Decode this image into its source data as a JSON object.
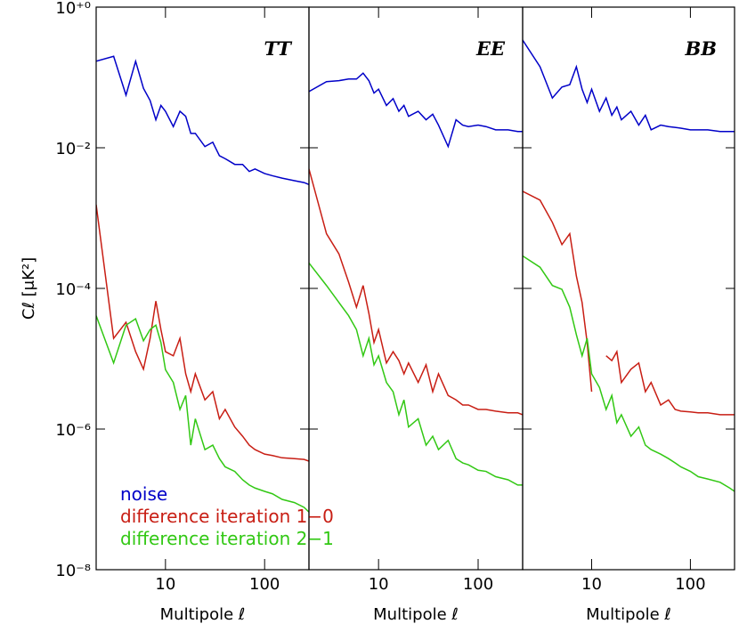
{
  "chart_data": {
    "type": "line",
    "ylabel": "Cℓ [μK²]",
    "xlabel": "Multipole ℓ",
    "log_x": true,
    "log_y": true,
    "xlim": [
      2,
      280
    ],
    "xticks": [
      10,
      100
    ],
    "ylim": [
      1e-08,
      1
    ],
    "yticks": [
      {
        "value": 1e-08,
        "label": "10⁻⁸"
      },
      {
        "value": 1e-06,
        "label": "10⁻⁶"
      },
      {
        "value": 0.0001,
        "label": "10⁻⁴"
      },
      {
        "value": 0.01,
        "label": "10⁻²"
      },
      {
        "value": 1,
        "label": "10⁺⁰"
      }
    ],
    "x": [
      2,
      3,
      4,
      5,
      6,
      7,
      8,
      9,
      10,
      12,
      14,
      16,
      18,
      20,
      25,
      30,
      35,
      40,
      50,
      60,
      70,
      80,
      100,
      120,
      150,
      200,
      250,
      280
    ],
    "series": [
      {
        "name": "noise",
        "color": "#0000c8"
      },
      {
        "name": "difference iteration 1−0",
        "color": "#c81e14"
      },
      {
        "name": "difference iteration 2−1",
        "color": "#32c814"
      }
    ],
    "panels": [
      {
        "title": "TT",
        "series": [
          {
            "values": [
              0.17,
              0.2,
              0.056,
              0.17,
              0.07,
              0.047,
              0.025,
              0.04,
              0.033,
              0.02,
              0.033,
              0.028,
              0.016,
              0.016,
              0.0104,
              0.012,
              0.0077,
              0.007,
              0.0058,
              0.0058,
              0.0046,
              0.005,
              0.0043,
              0.004,
              0.0037,
              0.0034,
              0.0032,
              0.003
            ]
          },
          {
            "values": [
              0.00155,
              1.95e-05,
              3.3e-05,
              1.26e-05,
              7.1e-06,
              1.95e-05,
              6.6e-05,
              2.6e-05,
              1.26e-05,
              1.1e-05,
              1.95e-05,
              6.1e-06,
              3.4e-06,
              6.1e-06,
              2.6e-06,
              3.4e-06,
              1.4e-06,
              1.9e-06,
              1.07e-06,
              7.9e-07,
              5.9e-07,
              5.1e-07,
              4.4e-07,
              4.2e-07,
              3.9e-07,
              3.8e-07,
              3.7e-07,
              3.5e-07
            ]
          },
          {
            "values": [
              4.1e-05,
              8.7e-06,
              3e-05,
              3.7e-05,
              1.8e-05,
              2.6e-05,
              3e-05,
              1.7e-05,
              7e-06,
              4.6e-06,
              1.9e-06,
              3e-06,
              5.9e-07,
              1.4e-06,
              5.1e-07,
              5.9e-07,
              3.8e-07,
              2.9e-07,
              2.5e-07,
              1.9e-07,
              1.6e-07,
              1.45e-07,
              1.3e-07,
              1.2e-07,
              1e-07,
              9e-08,
              7.7e-08,
              6.6e-08
            ]
          }
        ]
      },
      {
        "title": "EE",
        "series": [
          {
            "values": [
              0.063,
              0.087,
              0.09,
              0.095,
              0.095,
              0.115,
              0.09,
              0.06,
              0.068,
              0.04,
              0.05,
              0.033,
              0.04,
              0.028,
              0.033,
              0.025,
              0.03,
              0.021,
              0.0104,
              0.025,
              0.021,
              0.02,
              0.021,
              0.02,
              0.018,
              0.018,
              0.017,
              0.017
            ]
          },
          {
            "values": [
              0.005,
              0.0006,
              0.00031,
              0.000123,
              5.4e-05,
              0.00011,
              4.4e-05,
              1.7e-05,
              2.6e-05,
              8.7e-06,
              1.26e-05,
              9.4e-06,
              6.1e-06,
              8.7e-06,
              4.6e-06,
              8.2e-06,
              3.4e-06,
              6.1e-06,
              3e-06,
              2.6e-06,
              2.2e-06,
              2.2e-06,
              1.9e-06,
              1.9e-06,
              1.8e-06,
              1.7e-06,
              1.7e-06,
              1.6e-06
            ]
          },
          {
            "values": [
              0.00023,
              0.00011,
              6.3e-05,
              4.1e-05,
              2.6e-05,
              1.1e-05,
              1.95e-05,
              8.2e-06,
              1.1e-05,
              4.6e-06,
              3.4e-06,
              1.6e-06,
              2.6e-06,
              1.07e-06,
              1.4e-06,
              5.9e-07,
              7.9e-07,
              5.1e-07,
              6.9e-07,
              3.8e-07,
              3.3e-07,
              3.1e-07,
              2.6e-07,
              2.5e-07,
              2.1e-07,
              1.9e-07,
              1.6e-07,
              1.6e-07
            ]
          }
        ]
      },
      {
        "title": "BB",
        "series": [
          {
            "values": [
              0.34,
              0.142,
              0.051,
              0.073,
              0.079,
              0.142,
              0.068,
              0.044,
              0.068,
              0.033,
              0.051,
              0.029,
              0.038,
              0.025,
              0.033,
              0.021,
              0.029,
              0.018,
              0.021,
              0.02,
              0.0195,
              0.019,
              0.018,
              0.018,
              0.018,
              0.017,
              0.017,
              0.017
            ]
          },
          {
            "values": [
              0.0024,
              0.0018,
              0.00087,
              0.00042,
              0.0006,
              0.00015,
              6.3e-05,
              1.7e-05,
              3.4e-06,
              null,
              1.1e-05,
              9.4e-06,
              1.26e-05,
              4.6e-06,
              7.1e-06,
              8.7e-06,
              3.4e-06,
              4.6e-06,
              2.2e-06,
              2.6e-06,
              1.9e-06,
              1.8e-06,
              1.75e-06,
              1.7e-06,
              1.7e-06,
              1.6e-06,
              1.6e-06,
              1.6e-06
            ]
          },
          {
            "values": [
              0.00029,
              0.0002,
              0.00011,
              9.7e-05,
              5.4e-05,
              2.2e-05,
              1.1e-05,
              1.95e-05,
              6.1e-06,
              3.9e-06,
              1.9e-06,
              3e-06,
              1.23e-06,
              1.6e-06,
              7.9e-07,
              1.07e-06,
              5.9e-07,
              5.1e-07,
              4.4e-07,
              3.8e-07,
              3.3e-07,
              2.9e-07,
              2.5e-07,
              2.1e-07,
              1.95e-07,
              1.75e-07,
              1.45e-07,
              1.3e-07
            ]
          }
        ]
      }
    ]
  }
}
